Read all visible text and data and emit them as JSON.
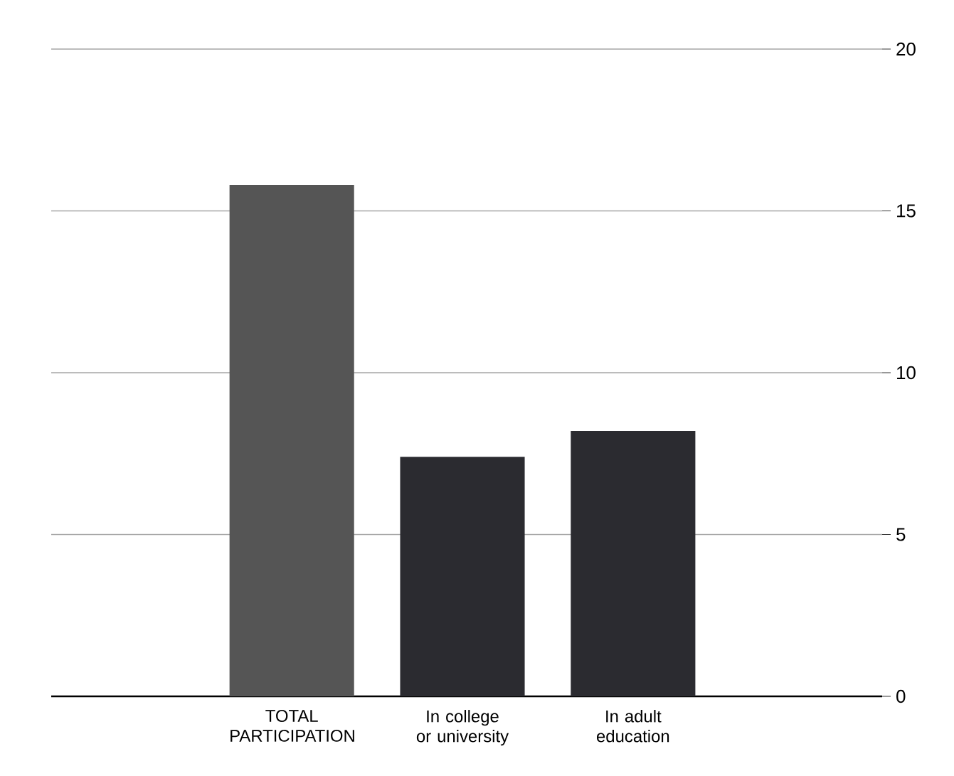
{
  "chart_data": {
    "type": "bar",
    "categories": [
      "TOTAL PARTICIPATION",
      "In college or university",
      "In adult education"
    ],
    "values": [
      15.8,
      7.4,
      8.2
    ],
    "colors": [
      "#555555",
      "#2b2b30",
      "#2b2b30"
    ],
    "ylim": [
      0,
      20
    ],
    "yticks": [
      0,
      5,
      10,
      15,
      20
    ],
    "grid": "y"
  }
}
